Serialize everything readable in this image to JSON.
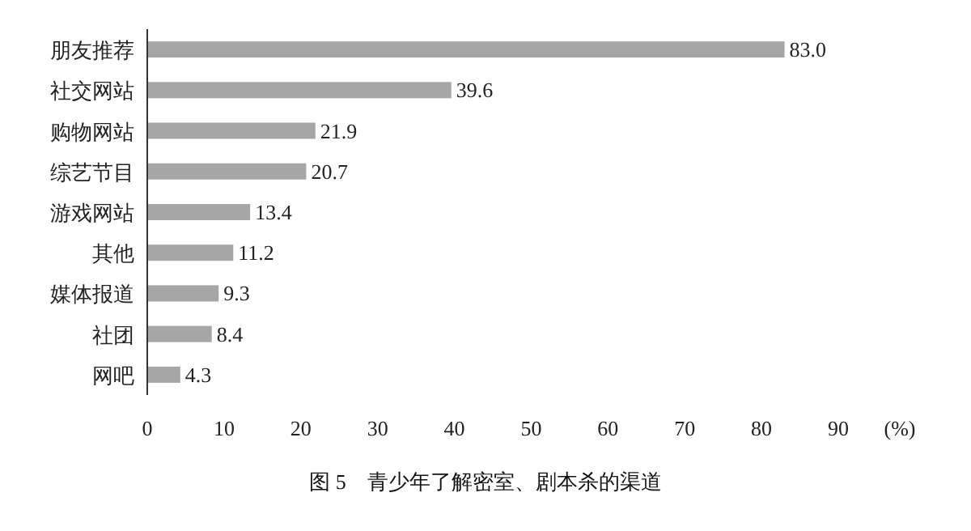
{
  "chart_data": {
    "type": "bar",
    "orientation": "horizontal",
    "title": "图 5　青少年了解密室、剧本杀的渠道",
    "xlabel": "(%)",
    "categories": [
      "朋友推荐",
      "社交网站",
      "购物网站",
      "综艺节目",
      "游戏网站",
      "其他",
      "媒体报道",
      "社团",
      "网吧"
    ],
    "values": [
      83.0,
      39.6,
      21.9,
      20.7,
      13.4,
      11.2,
      9.3,
      8.4,
      4.3
    ],
    "value_labels": [
      "83.0",
      "39.6",
      "21.9",
      "20.7",
      "13.4",
      "11.2",
      "9.3",
      "8.4",
      "4.3"
    ],
    "color": "#a6a6a6",
    "xlim": [
      0,
      90
    ],
    "xticks": [
      0,
      10,
      20,
      30,
      40,
      50,
      60,
      70,
      80,
      90
    ]
  }
}
